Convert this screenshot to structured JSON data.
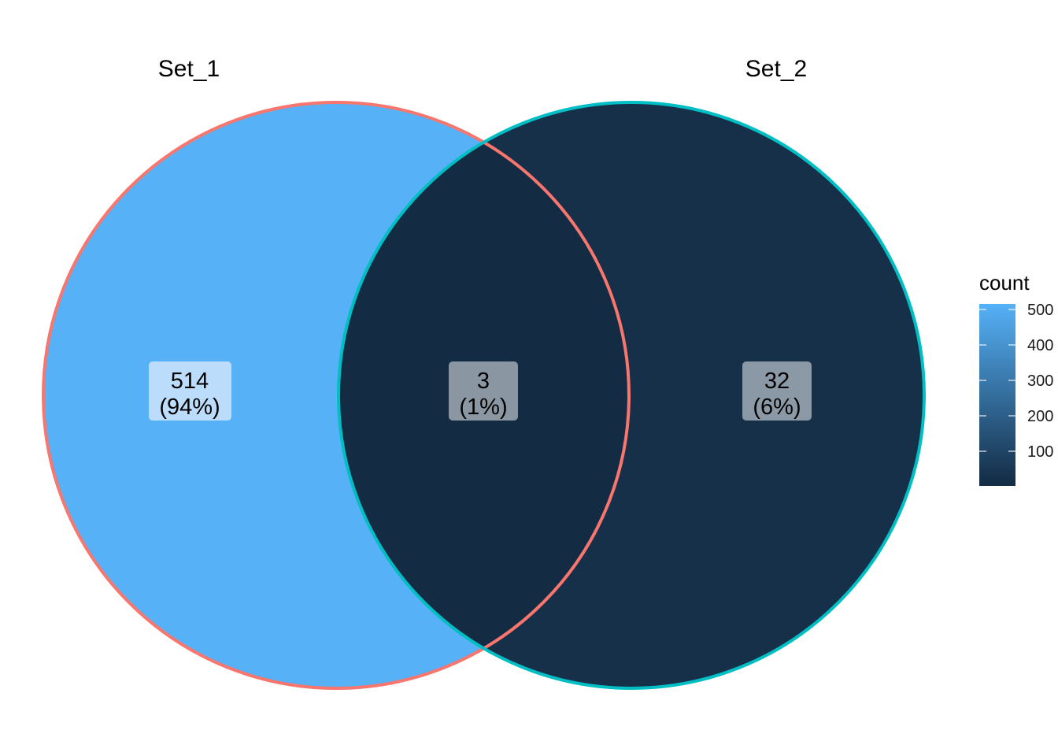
{
  "sets": [
    {
      "name": "Set_1",
      "color": "#F8766D"
    },
    {
      "name": "Set_2",
      "color": "#00BFC4"
    }
  ],
  "regions": [
    {
      "id": "set1-only",
      "count": "514",
      "percent": "(94%)",
      "fill": "#56B1F7",
      "label_bg": "#BBDDFB"
    },
    {
      "id": "overlap",
      "count": "3",
      "percent": "(1%)",
      "fill": "#132B43",
      "label_bg": "#8A96A2"
    },
    {
      "id": "set2-only",
      "count": "32",
      "percent": "(6%)",
      "fill": "#17304A",
      "label_bg": "#8B98A5"
    }
  ],
  "legend": {
    "title": "count",
    "ticks": [
      "500",
      "400",
      "300",
      "200",
      "100"
    ],
    "gradient_low": "#132B43",
    "gradient_high": "#56B1F7"
  }
}
